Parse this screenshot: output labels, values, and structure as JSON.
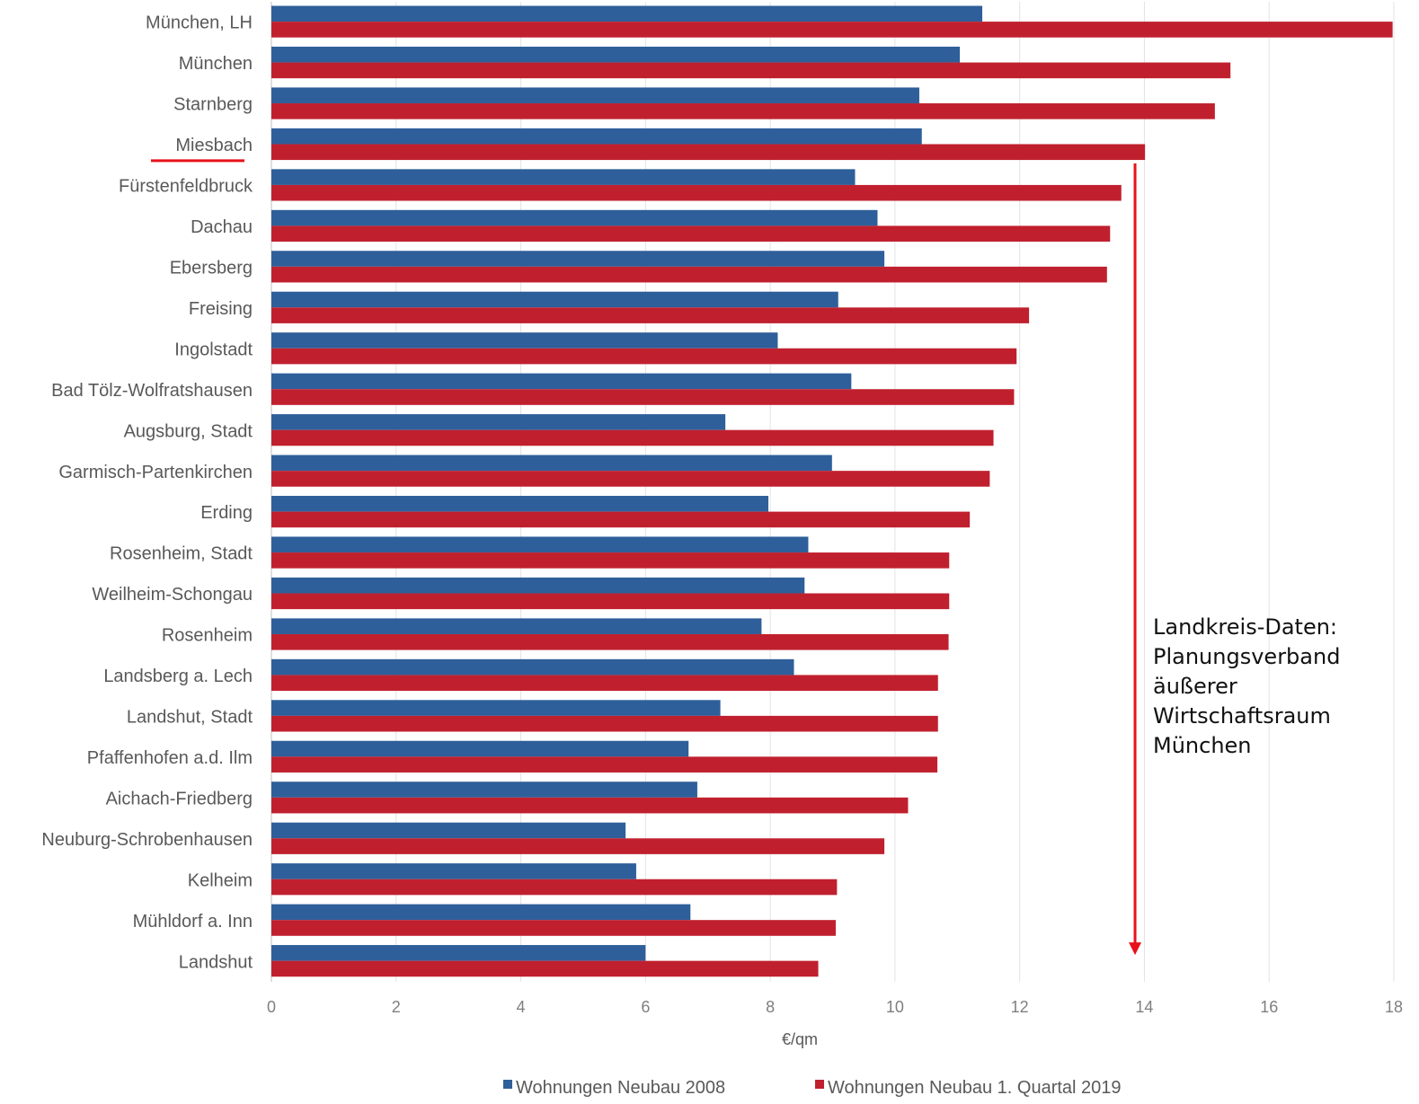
{
  "chart_data": {
    "type": "bar",
    "orientation": "horizontal",
    "categories": [
      "München, LH",
      "München",
      "Starnberg",
      "Miesbach",
      "Fürstenfeldbruck",
      "Dachau",
      "Ebersberg",
      "Freising",
      "Ingolstadt",
      "Bad Tölz-Wolfratshausen",
      "Augsburg, Stadt",
      "Garmisch-Partenkirchen",
      "Erding",
      "Rosenheim, Stadt",
      "Weilheim-Schongau",
      "Rosenheim",
      "Landsberg a. Lech",
      "Landshut, Stadt",
      "Pfaffenhofen a.d. Ilm",
      "Aichach-Friedberg",
      "Neuburg-Schrobenhausen",
      "Kelheim",
      "Mühldorf a. Inn",
      "Landshut"
    ],
    "series": [
      {
        "name": "Wohnungen Neubau 2008",
        "color": "#2e5f9a",
        "values": [
          11.4,
          11.04,
          10.39,
          10.43,
          9.36,
          9.72,
          9.83,
          9.09,
          8.12,
          9.3,
          7.28,
          8.99,
          7.97,
          8.61,
          8.55,
          7.86,
          8.38,
          7.2,
          6.69,
          6.83,
          5.68,
          5.85,
          6.72,
          6.0
        ]
      },
      {
        "name": "Wohnungen Neubau 1. Quartal 2019",
        "color": "#c0202e",
        "values": [
          17.98,
          15.38,
          15.13,
          14.01,
          13.63,
          13.45,
          13.4,
          12.15,
          11.95,
          11.91,
          11.58,
          11.52,
          11.2,
          10.87,
          10.87,
          10.86,
          10.69,
          10.69,
          10.68,
          10.21,
          9.83,
          9.07,
          9.05,
          8.77
        ]
      }
    ],
    "xlabel": "€/qm",
    "ylabel": "",
    "xlim": [
      0,
      18
    ],
    "xticks": [
      "0",
      "2",
      "4",
      "6",
      "8",
      "10",
      "12",
      "14",
      "16",
      "18"
    ],
    "grid": true,
    "legend_position": "bottom",
    "highlighted_category": "Miesbach",
    "underline_color": "#e8111a",
    "arrow": {
      "from_value": 13.85,
      "from_category": "Miesbach",
      "to_category": "Landshut",
      "color": "#e8111a"
    }
  },
  "annotation": {
    "lines": [
      "Landkreis-Daten:",
      "Planungsverband",
      "äußerer",
      "Wirtschaftsraum",
      "München"
    ]
  }
}
